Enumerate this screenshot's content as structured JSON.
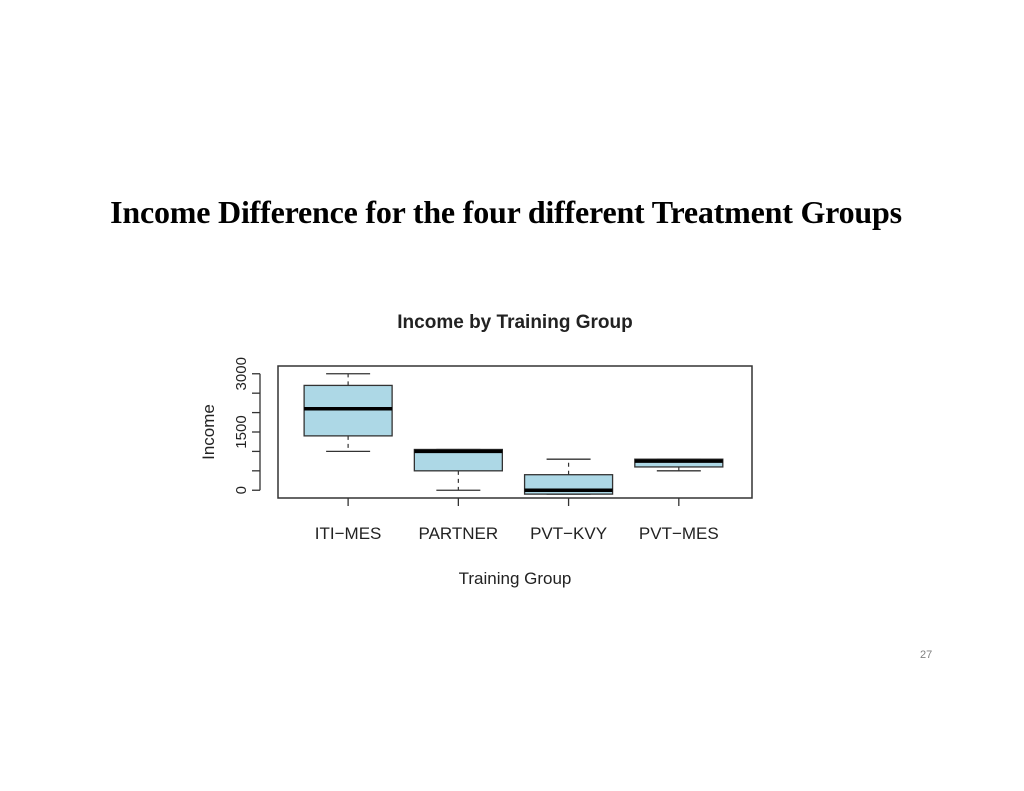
{
  "slide": {
    "title": "Income Difference for the four different Treatment Groups",
    "page_number": "27"
  },
  "chart_data": {
    "type": "boxplot",
    "title": "Income by Training Group",
    "xlabel": "Training Group",
    "ylabel": "Income",
    "ylim": [
      -200,
      3200
    ],
    "y_ticks": [
      0,
      500,
      1000,
      1500,
      2000,
      2500,
      3000
    ],
    "y_tick_labels": [
      {
        "value": 0,
        "label": "0"
      },
      {
        "value": 1500,
        "label": "1500"
      },
      {
        "value": 3000,
        "label": "3000"
      }
    ],
    "categories": [
      "ITI−MES",
      "PARTNER",
      "PVT−KVY",
      "PVT−MES"
    ],
    "boxes": [
      {
        "category": "ITI−MES",
        "whisker_low": 1000,
        "q1": 1400,
        "median": 2100,
        "q3": 2700,
        "whisker_high": 3000
      },
      {
        "category": "PARTNER",
        "whisker_low": 0,
        "q1": 500,
        "median": 1000,
        "q3": 1050,
        "whisker_high": 1050
      },
      {
        "category": "PVT−KVY",
        "whisker_low": -100,
        "q1": -100,
        "median": 0,
        "q3": 400,
        "whisker_high": 800
      },
      {
        "category": "PVT−MES",
        "whisker_low": 500,
        "q1": 600,
        "median": 750,
        "q3": 800,
        "whisker_high": 800
      }
    ],
    "box_color": "#add8e6",
    "grid": false,
    "legend": "none"
  }
}
